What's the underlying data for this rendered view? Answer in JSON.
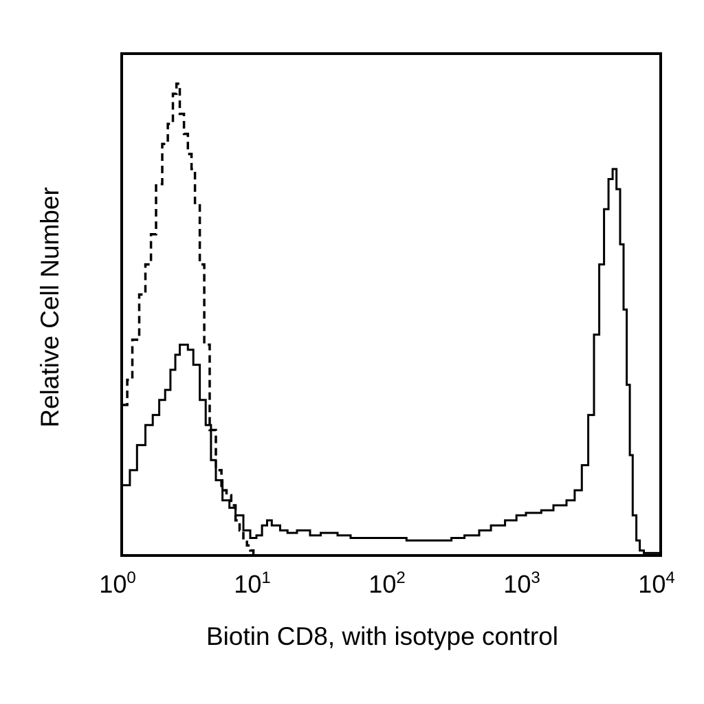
{
  "chart_data": {
    "type": "line",
    "title": "",
    "xlabel": "Biotin CD8, with isotype control",
    "ylabel": "Relative Cell Number",
    "x_scale": "log",
    "xlim": [
      1,
      10000
    ],
    "ylim": [
      0,
      100
    ],
    "x_ticks": [
      {
        "base": "10",
        "exp": "0"
      },
      {
        "base": "10",
        "exp": "1"
      },
      {
        "base": "10",
        "exp": "2"
      },
      {
        "base": "10",
        "exp": "3"
      },
      {
        "base": "10",
        "exp": "4"
      }
    ],
    "grid": false,
    "legend": "none",
    "series": [
      {
        "style": "solid",
        "color": "#000000",
        "x": [
          1.0,
          1.15,
          1.3,
          1.5,
          1.7,
          1.9,
          2.1,
          2.3,
          2.5,
          2.7,
          2.9,
          3.1,
          3.4,
          3.8,
          4.2,
          4.6,
          5.0,
          5.6,
          6.3,
          7.0,
          8.0,
          9.0,
          10,
          11,
          12,
          13,
          15,
          17,
          20,
          25,
          30,
          40,
          50,
          60,
          75,
          100,
          130,
          170,
          220,
          280,
          350,
          450,
          550,
          700,
          850,
          1000,
          1300,
          1600,
          2000,
          2300,
          2600,
          2900,
          3200,
          3500,
          3800,
          4100,
          4400,
          4700,
          5000,
          5300,
          5600,
          5900,
          6200,
          6600,
          7000,
          7500,
          8000,
          9000,
          10000
        ],
        "y": [
          14,
          17,
          22,
          26,
          28,
          31,
          33,
          37,
          40,
          42,
          42,
          41,
          38,
          31,
          26,
          19,
          15,
          11,
          9.5,
          8,
          5,
          3.5,
          4,
          6,
          7,
          6,
          5,
          4.5,
          5,
          4,
          4.5,
          4,
          3.5,
          3.5,
          3.5,
          3.5,
          3,
          3,
          3,
          3.5,
          4,
          5,
          6,
          7,
          8,
          8.5,
          9,
          10,
          11,
          13,
          18,
          28,
          44,
          58,
          69,
          75,
          77,
          73,
          62,
          49,
          34,
          20,
          8,
          3,
          1,
          0.5,
          0.5,
          0.5,
          0.5
        ]
      },
      {
        "style": "dashed",
        "color": "#000000",
        "x": [
          1.0,
          1.1,
          1.2,
          1.35,
          1.5,
          1.65,
          1.8,
          2.0,
          2.2,
          2.4,
          2.55,
          2.7,
          2.9,
          3.1,
          3.3,
          3.5,
          3.8,
          4.1,
          4.5,
          5.0,
          5.5,
          6.0,
          6.5,
          7.0,
          7.5,
          8.0,
          8.5,
          9.0,
          9.5,
          10,
          11,
          12,
          15,
          20,
          30,
          50,
          100,
          300,
          1000,
          3000,
          10000
        ],
        "y": [
          30,
          35,
          43,
          52,
          58,
          64,
          74,
          82,
          86,
          92,
          94,
          88,
          84,
          80,
          77,
          70,
          58,
          42,
          25,
          17,
          13,
          12,
          10,
          7,
          5,
          3,
          2,
          1,
          0.5,
          0,
          0,
          0,
          0,
          0,
          0,
          0,
          0,
          0,
          0,
          0,
          0
        ]
      }
    ]
  }
}
